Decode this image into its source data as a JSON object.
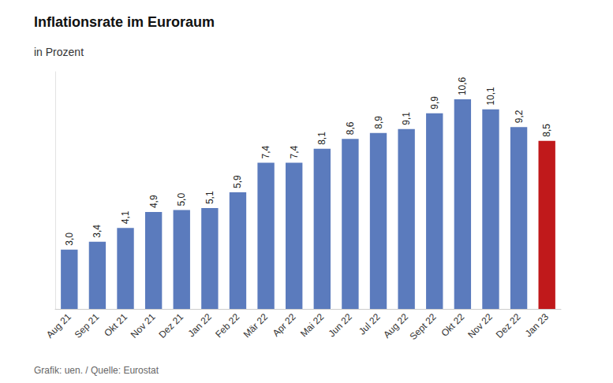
{
  "chart_data": {
    "type": "bar",
    "title": "Inflationsrate im Euroraum",
    "subtitle": "in Prozent",
    "caption": "Grafik: uen. / Quelle: Eurostat",
    "categories": [
      "Aug 21",
      "Sep 21",
      "Okt 21",
      "Nov 21",
      "Dez 21",
      "Jan 22",
      "Feb 22",
      "Mär 22",
      "Apr 22",
      "Mai 22",
      "Jun 22",
      "Jul 22",
      "Aug 22",
      "Sept 22",
      "Okt 22",
      "Nov 22",
      "Dez 22",
      "Jan 23"
    ],
    "values": [
      3.0,
      3.4,
      4.1,
      4.9,
      5.0,
      5.1,
      5.9,
      7.4,
      7.4,
      8.1,
      8.6,
      8.9,
      9.1,
      9.9,
      10.6,
      10.1,
      9.2,
      8.5
    ],
    "value_labels": [
      "3,0",
      "3,4",
      "4,1",
      "4,9",
      "5,0",
      "5,1",
      "5,9",
      "7,4",
      "7,4",
      "8,1",
      "8,6",
      "8,9",
      "9,1",
      "9,9",
      "10,6",
      "10,1",
      "9,2",
      "8,5"
    ],
    "colors": [
      "#5b7bbd",
      "#5b7bbd",
      "#5b7bbd",
      "#5b7bbd",
      "#5b7bbd",
      "#5b7bbd",
      "#5b7bbd",
      "#5b7bbd",
      "#5b7bbd",
      "#5b7bbd",
      "#5b7bbd",
      "#5b7bbd",
      "#5b7bbd",
      "#5b7bbd",
      "#5b7bbd",
      "#5b7bbd",
      "#5b7bbd",
      "#c0191b"
    ],
    "ylim": [
      0,
      12
    ],
    "yticks": [
      0
    ],
    "grid": false,
    "data_labels": true,
    "tick_labels": "x"
  }
}
